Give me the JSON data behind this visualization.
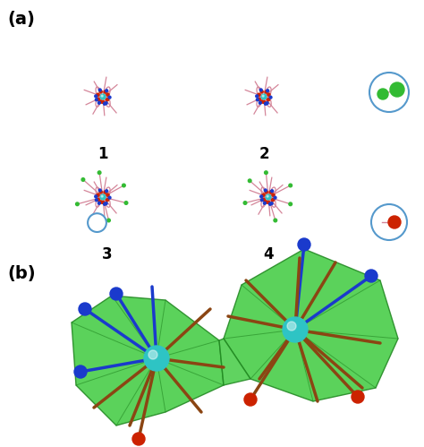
{
  "fig_width": 4.74,
  "fig_height": 4.99,
  "bg_color": "#ffffff",
  "label_a": "(a)",
  "label_b": "(b)",
  "cyan_color": "#2ec4c4",
  "blue_color": "#1a3acc",
  "red_color": "#cc2200",
  "green_color": "#33bb33",
  "pink_color": "#d4869a",
  "bond_brown": "#8b4513",
  "green_fill": "#44cc44",
  "green_edge": "#228822",
  "circle_color": "#5599cc"
}
